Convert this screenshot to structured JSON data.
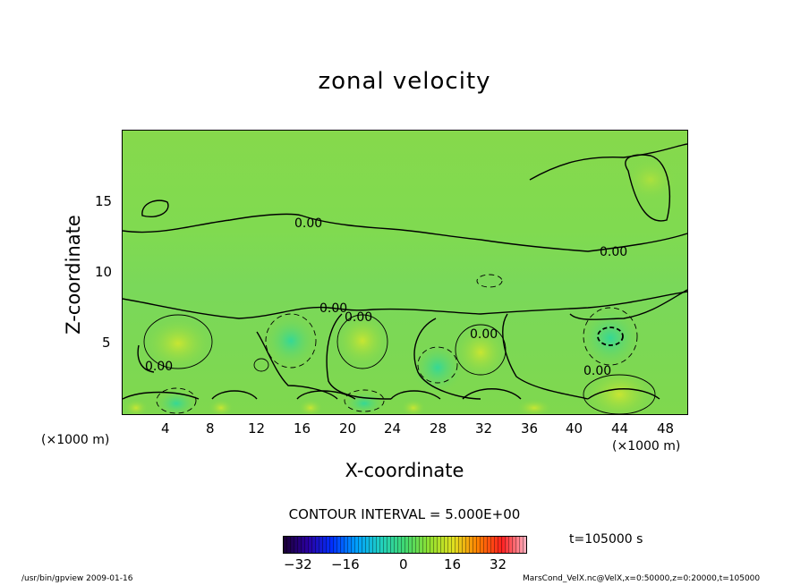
{
  "chart_data": {
    "type": "heatmap",
    "title": "zonal velocity",
    "xlabel": "X-coordinate",
    "ylabel": "Z-coordinate",
    "x_unit": "(×1000 m)",
    "y_unit": "(×1000 m)",
    "x_ticks": [
      "4",
      "8",
      "12",
      "16",
      "20",
      "24",
      "28",
      "32",
      "36",
      "40",
      "44",
      "48"
    ],
    "y_ticks": [
      "5",
      "10",
      "15"
    ],
    "xlim": [
      0,
      50
    ],
    "ylim": [
      0,
      20
    ],
    "contour_labels": [
      "0.00",
      "0.00",
      "0.00",
      "0.00",
      "0.00",
      "0.00",
      "0.00"
    ],
    "contour_interval": "CONTOUR INTERVAL = 5.000E+00",
    "time": "t=105000 s",
    "colorbar": {
      "ticks": [
        "−32",
        "−16",
        "0",
        "16",
        "32"
      ],
      "range": [
        -40,
        40
      ],
      "colormap": [
        "#1a0033",
        "#2a00a0",
        "#0030ff",
        "#00a0ff",
        "#20d0c0",
        "#40d870",
        "#90e030",
        "#e0e020",
        "#ff8000",
        "#ff2020",
        "#ffb0c0"
      ]
    },
    "footer_left": "/usr/bin/gpview   2009-01-16",
    "footer_right": "MarsCond_VelX.nc@VelX,x=0:50000,z=0:20000,t=105000"
  }
}
